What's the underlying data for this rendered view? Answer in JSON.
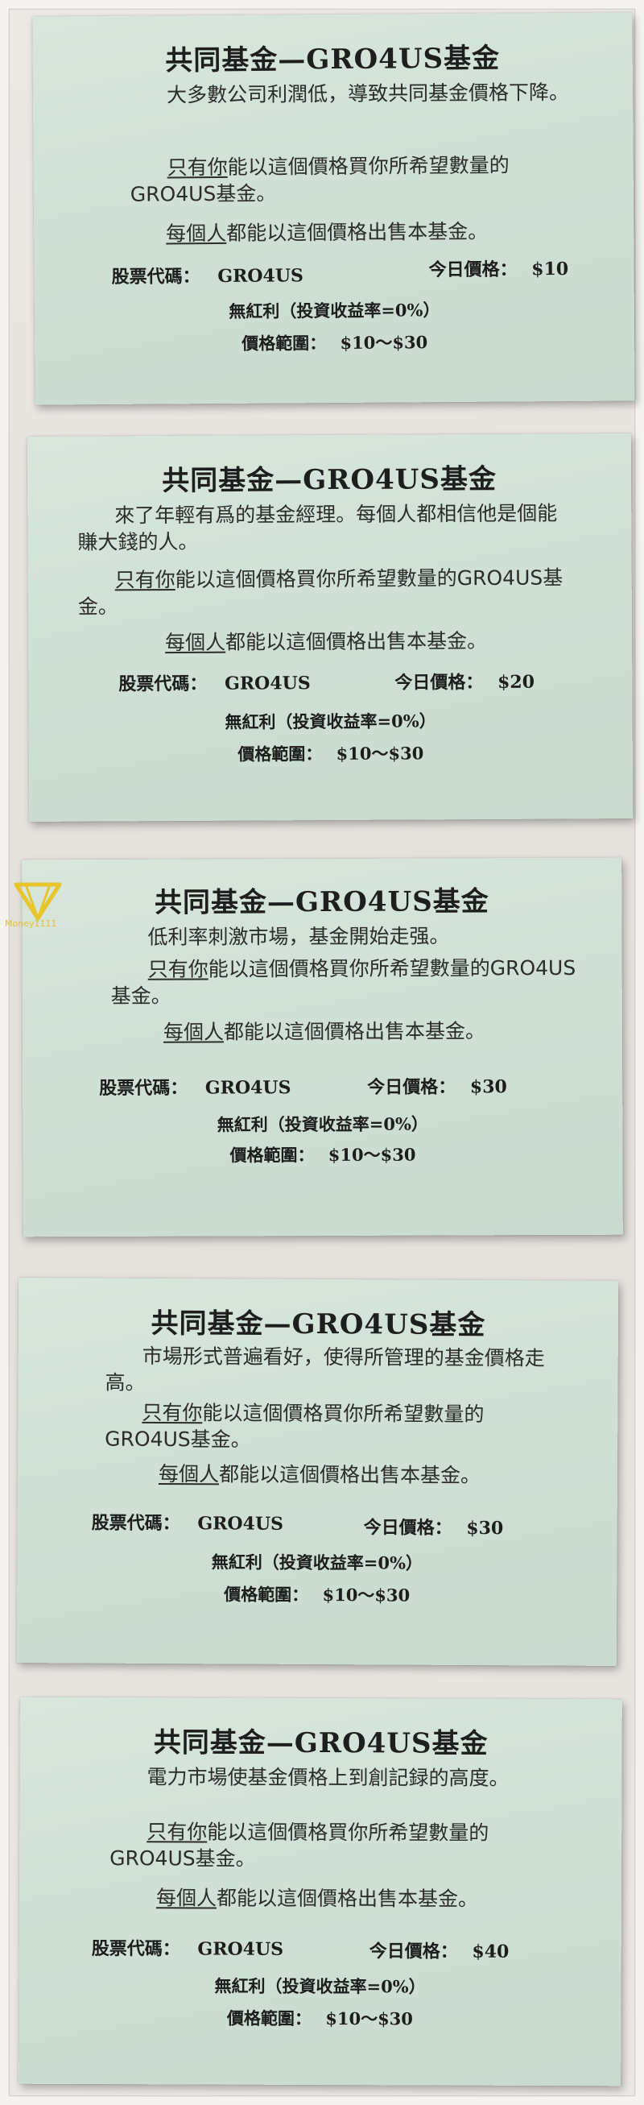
{
  "watermark": {
    "text": "Money1111",
    "color": "#e8c52c",
    "icon": "diamond-logo-icon"
  },
  "cards": [
    {
      "title": "共同基金—GRO4US基金",
      "desc": "大多數公司利潤低，導致共同基金價格下降。",
      "only_u": "只有你",
      "only_rest": "能以這個價格買你所希望數量的GRO4US基金。",
      "each_u": "每個人",
      "each_rest": "都能以這個價格出售本基金。",
      "code_label": "股票代碼：",
      "code_value": "GRO4US",
      "price_label": "今日價格：",
      "price_value": "$10",
      "dividend": "無紅利（投資收益率=0%）",
      "range_label": "價格範圍：",
      "range_value": "$10～$30"
    },
    {
      "title": "共同基金—GRO4US基金",
      "desc": "來了年輕有爲的基金經理。每個人都相信他是個能賺大錢的人。",
      "only_u": "只有你",
      "only_rest": "能以這個價格買你所希望數量的GRO4US基金。",
      "each_u": "每個人",
      "each_rest": "都能以這個價格出售本基金。",
      "code_label": "股票代碼：",
      "code_value": "GRO4US",
      "price_label": "今日價格：",
      "price_value": "$20",
      "dividend": "無紅利（投資收益率=0%）",
      "range_label": "價格範圍：",
      "range_value": "$10～$30"
    },
    {
      "title": "共同基金—GRO4US基金",
      "desc": "低利率刺激市場，基金開始走强。",
      "only_u": "只有你",
      "only_rest": "能以這個價格買你所希望數量的GRO4US基金。",
      "each_u": "每個人",
      "each_rest": "都能以這個價格出售本基金。",
      "code_label": "股票代碼：",
      "code_value": "GRO4US",
      "price_label": "今日價格：",
      "price_value": "$30",
      "dividend": "無紅利（投資收益率=0%）",
      "range_label": "價格範圍：",
      "range_value": "$10～$30"
    },
    {
      "title": "共同基金—GRO4US基金",
      "desc": "市場形式普遍看好，使得所管理的基金價格走高。",
      "only_u": "只有你",
      "only_rest": "能以這個價格買你所希望數量的GRO4US基金。",
      "each_u": "每個人",
      "each_rest": "都能以這個價格出售本基金。",
      "code_label": "股票代碼：",
      "code_value": "GRO4US",
      "price_label": "今日價格：",
      "price_value": "$30",
      "dividend": "無紅利（投資收益率=0%）",
      "range_label": "價格範圍：",
      "range_value": "$10～$30"
    },
    {
      "title": "共同基金—GRO4US基金",
      "desc": "電力市場使基金價格上到創記録的高度。",
      "only_u": "只有你",
      "only_rest": "能以這個價格買你所希望數量的GRO4US基金。",
      "each_u": "每個人",
      "each_rest": "都能以這個價格出售本基金。",
      "code_label": "股票代碼：",
      "code_value": "GRO4US",
      "price_label": "今日價格：",
      "price_value": "$40",
      "dividend": "無紅利（投資收益率=0%）",
      "range_label": "價格範圍：",
      "range_value": "$10～$30"
    }
  ]
}
